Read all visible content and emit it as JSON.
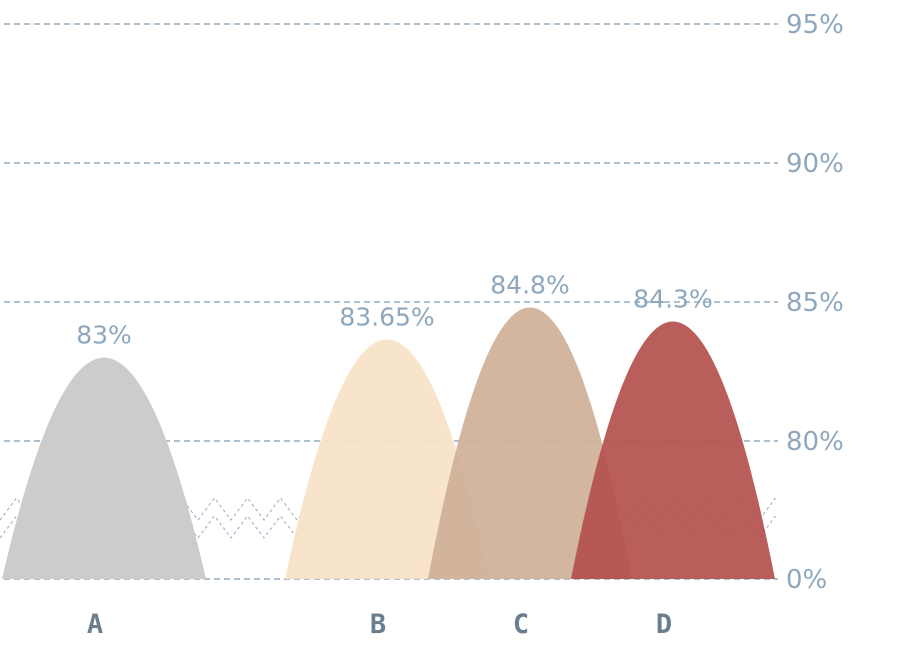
{
  "chart_data": {
    "type": "area",
    "categories": [
      "A",
      "B",
      "C",
      "D"
    ],
    "values": [
      83,
      83.65,
      84.8,
      84.3
    ],
    "value_labels": [
      "83%",
      "83.65%",
      "84.8%",
      "84.3%"
    ],
    "colors": [
      "#cccccc",
      "#f7e2c6",
      "#ceb098",
      "#b3504c"
    ],
    "y_ticks": [
      {
        "value": 0,
        "label": "0%"
      },
      {
        "value": 80,
        "label": "80%"
      },
      {
        "value": 85,
        "label": "85%"
      },
      {
        "value": 90,
        "label": "90%"
      },
      {
        "value": 95,
        "label": "95%"
      }
    ],
    "ylim": [
      0,
      95
    ],
    "axis_break": [
      0,
      80
    ],
    "grid": true,
    "title": "",
    "xlabel": "",
    "ylabel": ""
  }
}
